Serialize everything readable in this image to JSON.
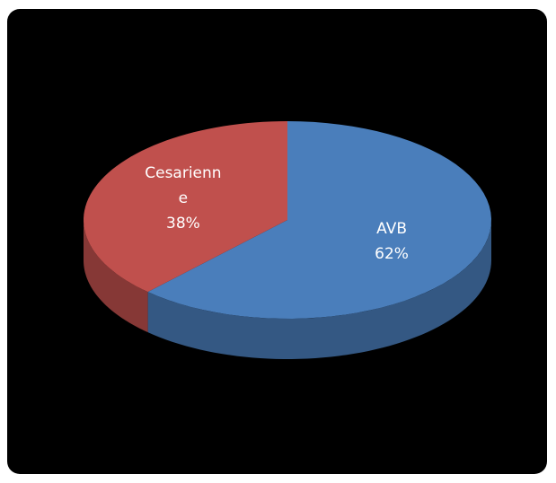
{
  "chart_data": {
    "type": "pie3d",
    "categories": [
      "AVB",
      "Cesarienne"
    ],
    "values": [
      62,
      38
    ],
    "value_labels": [
      "62%",
      "38%"
    ],
    "colors": [
      "#4a7ebb",
      "#c0504d"
    ],
    "start": "top",
    "direction": "clockwise"
  }
}
